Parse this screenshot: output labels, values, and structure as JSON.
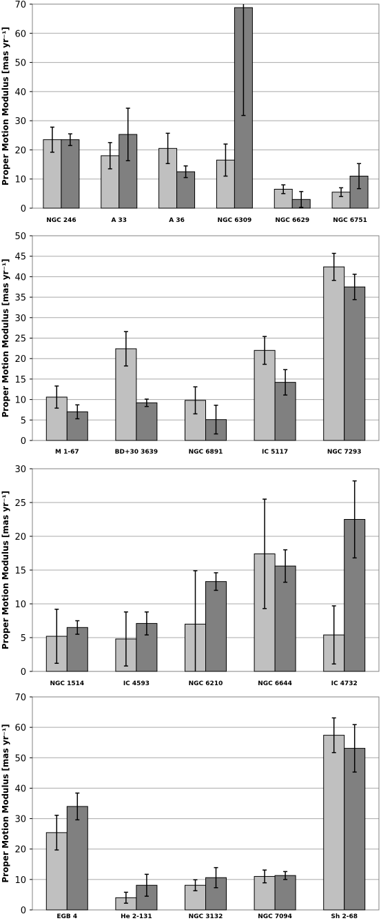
{
  "chart_data": [
    {
      "type": "bar",
      "ylabel": "Proper Motion Modulus [mas yr⁻¹]",
      "ylim": [
        0,
        70
      ],
      "yticks": [
        0,
        10,
        20,
        30,
        40,
        50,
        60,
        70
      ],
      "grid": true,
      "categories": [
        "NGC 246",
        "A 33",
        "A 36",
        "NGC 6309",
        "NGC 6629",
        "NGC 6751"
      ],
      "series": [
        {
          "color": "#c0c0c0",
          "values": [
            23.5,
            18.0,
            20.5,
            16.5,
            6.5,
            5.5
          ],
          "err": [
            4.3,
            4.5,
            5.2,
            5.5,
            1.5,
            1.5
          ]
        },
        {
          "color": "#808080",
          "values": [
            23.5,
            25.3,
            12.5,
            68.8,
            3.0,
            11.0
          ],
          "err": [
            2.0,
            9.0,
            2.0,
            37.0,
            2.7,
            4.3
          ]
        }
      ]
    },
    {
      "type": "bar",
      "ylabel": "Proper Motion Modulus [mas yr⁻¹]",
      "ylim": [
        0,
        50
      ],
      "yticks": [
        0,
        5,
        10,
        15,
        20,
        25,
        30,
        35,
        40,
        45,
        50
      ],
      "grid": true,
      "categories": [
        "M 1-67",
        "BD+30 3639",
        "NGC 6891",
        "IC 5117",
        "NGC 7293"
      ],
      "series": [
        {
          "color": "#c0c0c0",
          "values": [
            10.6,
            22.4,
            9.8,
            22.0,
            42.4
          ],
          "err": [
            2.7,
            4.2,
            3.3,
            3.4,
            3.3
          ]
        },
        {
          "color": "#808080",
          "values": [
            7.0,
            9.2,
            5.1,
            14.2,
            37.5
          ],
          "err": [
            1.7,
            0.9,
            3.5,
            3.1,
            3.1
          ]
        }
      ]
    },
    {
      "type": "bar",
      "ylabel": "Proper Motion Modulus [mas yr⁻¹]",
      "ylim": [
        0,
        30
      ],
      "yticks": [
        0,
        5,
        10,
        15,
        20,
        25,
        30
      ],
      "grid": true,
      "categories": [
        "NGC 1514",
        "IC 4593",
        "NGC 6210",
        "NGC 6644",
        "IC 4732"
      ],
      "series": [
        {
          "color": "#c0c0c0",
          "values": [
            5.2,
            4.8,
            7.0,
            17.4,
            5.4
          ],
          "err": [
            4.0,
            4.0,
            7.9,
            8.1,
            4.3
          ]
        },
        {
          "color": "#808080",
          "values": [
            6.5,
            7.1,
            13.3,
            15.6,
            22.5
          ],
          "err": [
            1.0,
            1.7,
            1.3,
            2.4,
            5.7
          ]
        }
      ]
    },
    {
      "type": "bar",
      "ylabel": "Proper Motion Modulus [mas yr⁻¹]",
      "ylim": [
        0,
        70
      ],
      "yticks": [
        0,
        10,
        20,
        30,
        40,
        50,
        60,
        70
      ],
      "grid": true,
      "categories": [
        "EGB 4",
        "He 2-131",
        "NGC 3132",
        "NGC 7094",
        "Sh 2-68"
      ],
      "series": [
        {
          "color": "#c0c0c0",
          "values": [
            25.4,
            4.0,
            8.1,
            11.0,
            57.4
          ],
          "err": [
            5.7,
            1.8,
            1.8,
            2.1,
            5.7
          ]
        },
        {
          "color": "#808080",
          "values": [
            34.0,
            8.1,
            10.6,
            11.3,
            53.1
          ],
          "err": [
            4.4,
            3.6,
            3.3,
            1.3,
            7.8
          ]
        }
      ]
    }
  ]
}
